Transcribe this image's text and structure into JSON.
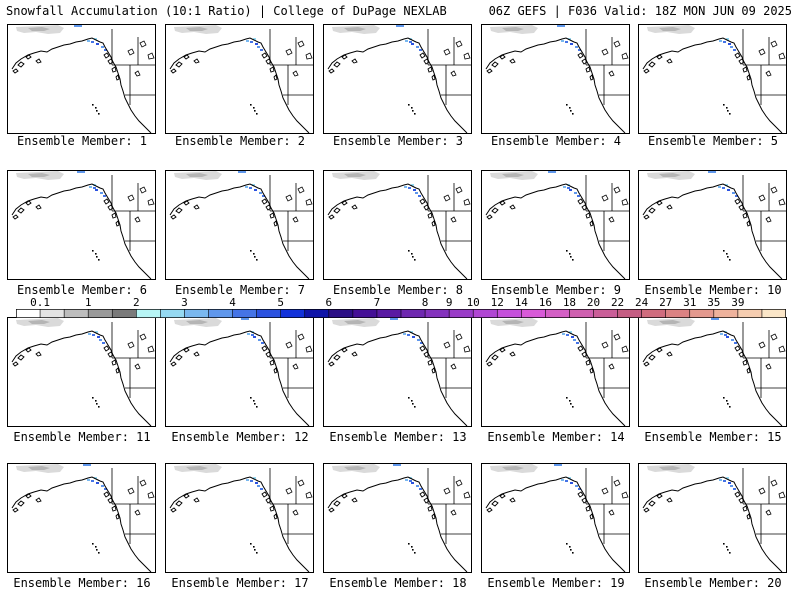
{
  "header": {
    "left_title": "Snowfall Accumulation (10:1 Ratio) | College of DuPage NEXLAB",
    "right_title": "06Z GEFS | F036 Valid: 18Z MON JUN 09 2025"
  },
  "colorbar": {
    "tick_labels": [
      "0.1",
      "1",
      "2",
      "3",
      "4",
      "5",
      "6",
      "7",
      "8",
      "9",
      "10",
      "12",
      "14",
      "16",
      "18",
      "20",
      "22",
      "24",
      "27",
      "31",
      "35",
      "39"
    ],
    "colors": [
      "#ffffff",
      "#e3e3e3",
      "#bdbdbd",
      "#9a9a9a",
      "#7a7a7a",
      "#b7f5f5",
      "#95d9f2",
      "#7ab8ef",
      "#5f97ec",
      "#4574e6",
      "#2b52e0",
      "#1232da",
      "#0f14a8",
      "#2c0f86",
      "#440f96",
      "#5a1aa3",
      "#6f28b0",
      "#8432bd",
      "#9a3cc8",
      "#b046d3",
      "#c54fdb",
      "#d85ad8",
      "#d45fc5",
      "#cf5faf",
      "#ca5e98",
      "#c55d83",
      "#d06c7e",
      "#db8283",
      "#e4998e",
      "#eeb29c",
      "#f6cdb0",
      "#fbe6c8"
    ]
  },
  "panels": [
    {
      "label": "Ensemble Member: 1"
    },
    {
      "label": "Ensemble Member: 2"
    },
    {
      "label": "Ensemble Member: 3"
    },
    {
      "label": "Ensemble Member: 4"
    },
    {
      "label": "Ensemble Member: 5"
    },
    {
      "label": "Ensemble Member: 6"
    },
    {
      "label": "Ensemble Member: 7"
    },
    {
      "label": "Ensemble Member: 8"
    },
    {
      "label": "Ensemble Member: 9"
    },
    {
      "label": "Ensemble Member: 10"
    },
    {
      "label": "Ensemble Member: 11"
    },
    {
      "label": "Ensemble Member: 12"
    },
    {
      "label": "Ensemble Member: 13"
    },
    {
      "label": "Ensemble Member: 14"
    },
    {
      "label": "Ensemble Member: 15"
    },
    {
      "label": "Ensemble Member: 16"
    },
    {
      "label": "Ensemble Member: 17"
    },
    {
      "label": "Ensemble Member: 18"
    },
    {
      "label": "Ensemble Member: 19"
    },
    {
      "label": "Ensemble Member: 20"
    }
  ]
}
